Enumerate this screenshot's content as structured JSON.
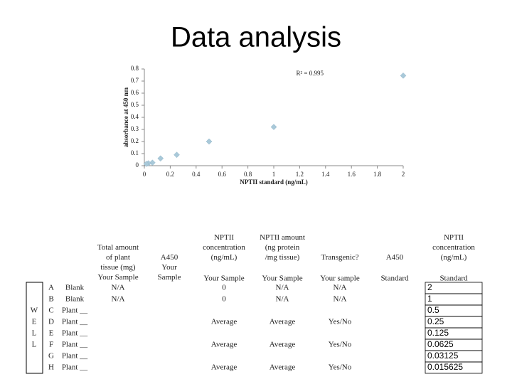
{
  "title": "Data analysis",
  "chart_data": {
    "type": "scatter",
    "annotation": "R² = 0.995",
    "xlabel": "NPTII standard (ng/mL)",
    "ylabel": "absorbance at 450 nm",
    "x": [
      2,
      1,
      0.5,
      0.25,
      0.125,
      0.0625,
      0.03125,
      0.015625
    ],
    "values": [
      0.745,
      0.32,
      0.2,
      0.09,
      0.06,
      0.025,
      0.02,
      0.015
    ],
    "color": "#a9c9d9",
    "xlim": [
      0,
      2
    ],
    "xticks": [
      0,
      0.2,
      0.4,
      0.6,
      0.8,
      1,
      1.2,
      1.4,
      1.6,
      1.8,
      2
    ],
    "ylim": [
      0,
      0.8
    ],
    "yticks": [
      0,
      0.1,
      0.2,
      0.3,
      0.4,
      0.5,
      0.6,
      0.7,
      0.8
    ]
  },
  "table": {
    "well_label": "WELL",
    "headers": {
      "tissue": "Total amount of plant tissue (mg)",
      "a450": "A450",
      "conc": "NPTII concentration (ng/mL)",
      "amount": "NPTII amount (ng protein /mg tissue)",
      "transgenic": "Transgenic?",
      "std_a450": "A450",
      "std_conc": "NPTII concentration (ng/mL)"
    },
    "subheaders": {
      "tissue": "Your Sample",
      "a450": "Your Sample",
      "conc": "Your Sample",
      "amount": "Your Sample",
      "transgenic": "Your sample",
      "std_a450": "Standard",
      "std_conc": "Standard"
    },
    "rows": [
      {
        "letter": "A",
        "sample": "Blank",
        "tissue": "N/A",
        "conc": "0",
        "amount": "N/A",
        "transgenic": "N/A",
        "std_conc": "2"
      },
      {
        "letter": "B",
        "sample": "Blank",
        "tissue": "N/A",
        "conc": "0",
        "amount": "N/A",
        "transgenic": "N/A",
        "std_conc": "1"
      },
      {
        "letter": "C",
        "sample": "Plant __",
        "std_conc": "0.5"
      },
      {
        "letter": "D",
        "sample": "Plant __",
        "conc": "Average",
        "amount": "Average",
        "transgenic": "Yes/No",
        "std_conc": "0.25"
      },
      {
        "letter": "E",
        "sample": "Plant __",
        "std_conc": "0.125"
      },
      {
        "letter": "F",
        "sample": "Plant __",
        "conc": "Average",
        "amount": "Average",
        "transgenic": "Yes/No",
        "std_conc": "0.0625"
      },
      {
        "letter": "G",
        "sample": "Plant __",
        "std_conc": "0.03125"
      },
      {
        "letter": "H",
        "sample": "Plant __",
        "conc": "Average",
        "amount": "Average",
        "transgenic": "Yes/No",
        "std_conc": "0.015625"
      }
    ]
  }
}
